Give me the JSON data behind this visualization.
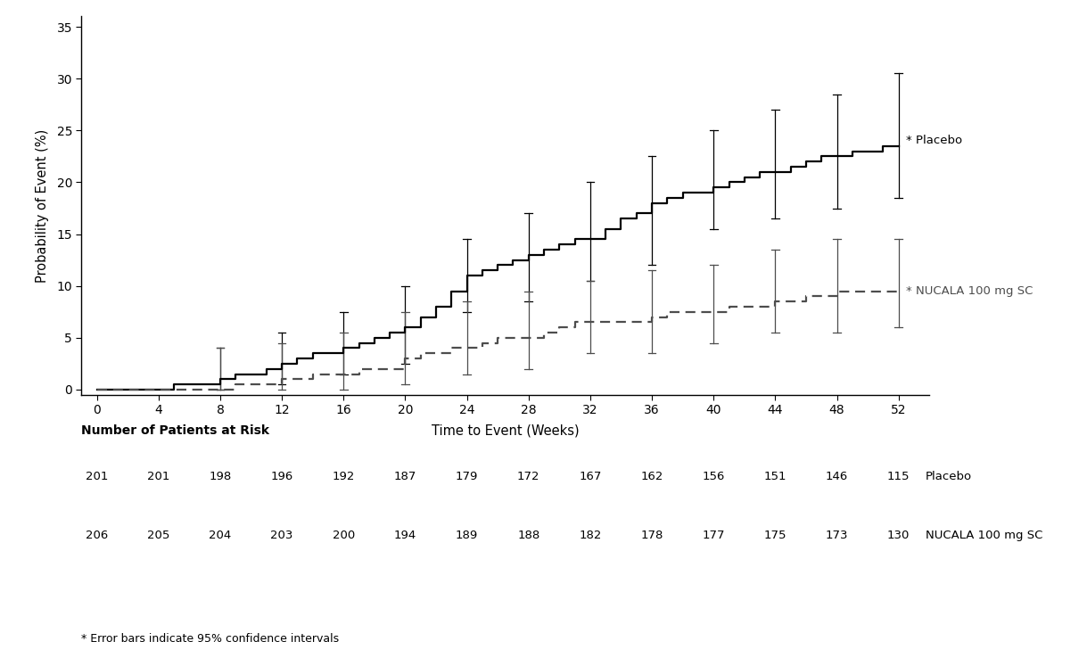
{
  "title": "",
  "ylabel": "Probability of Event (%)",
  "xlabel": "Time to Event (Weeks)",
  "ylim": [
    -0.5,
    36
  ],
  "xlim": [
    -1,
    54
  ],
  "yticks": [
    0,
    5,
    10,
    15,
    20,
    25,
    30,
    35
  ],
  "xticks": [
    0,
    4,
    8,
    12,
    16,
    20,
    24,
    28,
    32,
    36,
    40,
    44,
    48,
    52
  ],
  "placebo_x": [
    0,
    4,
    5,
    7,
    8,
    9,
    10,
    11,
    12,
    13,
    14,
    15,
    16,
    17,
    18,
    19,
    20,
    21,
    22,
    23,
    24,
    25,
    26,
    27,
    28,
    29,
    30,
    31,
    32,
    33,
    34,
    35,
    36,
    37,
    38,
    39,
    40,
    41,
    42,
    43,
    44,
    45,
    46,
    47,
    48,
    49,
    50,
    51,
    52
  ],
  "placebo_y": [
    0,
    0,
    0.5,
    0.5,
    1.0,
    1.5,
    1.5,
    2.0,
    2.5,
    3.0,
    3.5,
    3.5,
    4.0,
    4.5,
    5.0,
    5.5,
    6.0,
    7.0,
    8.0,
    9.5,
    11.0,
    11.5,
    12.0,
    12.5,
    13.0,
    13.5,
    14.0,
    14.5,
    14.5,
    15.5,
    16.5,
    17.0,
    18.0,
    18.5,
    19.0,
    19.0,
    19.5,
    20.0,
    20.5,
    21.0,
    21.0,
    21.5,
    22.0,
    22.5,
    22.5,
    23.0,
    23.0,
    23.5,
    23.5
  ],
  "nucala_x": [
    0,
    8,
    9,
    12,
    13,
    14,
    16,
    17,
    20,
    21,
    22,
    23,
    24,
    25,
    26,
    28,
    29,
    30,
    31,
    32,
    36,
    37,
    40,
    41,
    44,
    45,
    46,
    47,
    48,
    52
  ],
  "nucala_y": [
    0,
    0,
    0.5,
    1.0,
    1.0,
    1.5,
    1.5,
    2.0,
    3.0,
    3.5,
    3.5,
    4.0,
    4.0,
    4.5,
    5.0,
    5.0,
    5.5,
    6.0,
    6.5,
    6.5,
    7.0,
    7.5,
    7.5,
    8.0,
    8.5,
    8.5,
    9.0,
    9.0,
    9.5,
    9.5
  ],
  "placebo_err_x": [
    8,
    12,
    16,
    20,
    24,
    28,
    32,
    36,
    40,
    44,
    48,
    52
  ],
  "placebo_err_lo": [
    0.0,
    0.5,
    1.5,
    2.5,
    7.5,
    8.5,
    10.5,
    12.0,
    15.5,
    16.5,
    17.5,
    18.5
  ],
  "placebo_err_hi": [
    4.0,
    5.5,
    7.5,
    10.0,
    14.5,
    17.0,
    20.0,
    22.5,
    25.0,
    27.0,
    28.5,
    30.5
  ],
  "nucala_err_x": [
    8,
    12,
    16,
    20,
    24,
    28,
    32,
    36,
    40,
    44,
    48,
    52
  ],
  "nucala_err_lo": [
    0.0,
    0.0,
    0.0,
    0.5,
    1.5,
    2.0,
    3.5,
    3.5,
    4.5,
    5.5,
    5.5,
    6.0
  ],
  "nucala_err_hi": [
    4.0,
    4.5,
    5.5,
    7.5,
    8.5,
    9.5,
    10.5,
    11.5,
    12.0,
    13.5,
    14.5,
    14.5
  ],
  "placebo_label": "* Placebo",
  "nucala_label": "* NUCALA 100 mg SC",
  "risk_header": "Number of Patients at Risk",
  "placebo_risk": [
    201,
    201,
    198,
    196,
    192,
    187,
    179,
    172,
    167,
    162,
    156,
    151,
    146,
    115
  ],
  "nucala_risk": [
    206,
    205,
    204,
    203,
    200,
    194,
    189,
    188,
    182,
    178,
    177,
    175,
    173,
    130
  ],
  "risk_weeks": [
    0,
    4,
    8,
    12,
    16,
    20,
    24,
    28,
    32,
    36,
    40,
    44,
    48,
    52
  ],
  "footnote": "* Error bars indicate 95% confidence intervals",
  "placebo_color": "#000000",
  "nucala_color": "#4d4d4d",
  "background_color": "#ffffff"
}
